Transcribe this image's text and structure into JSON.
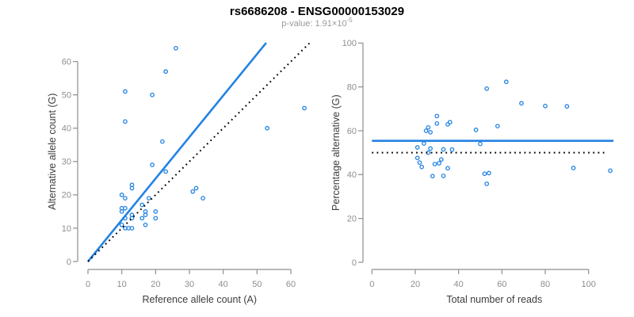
{
  "header": {
    "title": "rs6686208 - ENSG00000153029",
    "subtitle_base": "p-value: 1.91×10",
    "subtitle_exponent": "-5"
  },
  "colors": {
    "point_blue": "#2383e2",
    "fit_line_blue": "#2383e2",
    "reference_line_black": "#000000",
    "axis_gray": "#8e8e8e",
    "tick_label_gray": "#8e8e8e",
    "axis_label_dark": "#3d3d3d",
    "subtitle_gray": "#9a9a9a"
  },
  "chart_data": [
    {
      "id": "allele-count-scatter",
      "type": "scatter",
      "title": "",
      "xlabel": "Reference allele count (A)",
      "ylabel": "Alternative allele count (G)",
      "xlim": [
        0,
        66
      ],
      "ylim": [
        0,
        66
      ],
      "xticks": [
        0,
        10,
        20,
        30,
        40,
        50,
        60
      ],
      "yticks": [
        0,
        10,
        20,
        30,
        40,
        50,
        60
      ],
      "grid": false,
      "legend": "none",
      "points": [
        [
          26,
          64
        ],
        [
          23,
          57
        ],
        [
          11,
          51
        ],
        [
          19,
          50
        ],
        [
          11,
          42
        ],
        [
          22,
          36
        ],
        [
          19,
          29
        ],
        [
          23,
          27
        ],
        [
          13,
          23
        ],
        [
          13,
          22
        ],
        [
          31,
          21
        ],
        [
          32,
          22
        ],
        [
          34,
          19
        ],
        [
          10,
          20
        ],
        [
          11,
          19
        ],
        [
          18,
          19
        ],
        [
          16,
          17
        ],
        [
          10,
          16
        ],
        [
          10,
          15
        ],
        [
          11,
          16
        ],
        [
          11,
          13
        ],
        [
          13,
          14
        ],
        [
          13,
          13
        ],
        [
          17,
          15
        ],
        [
          17,
          14
        ],
        [
          16,
          13
        ],
        [
          20,
          15
        ],
        [
          20,
          13
        ],
        [
          17,
          11
        ],
        [
          10,
          11
        ],
        [
          11,
          10
        ],
        [
          12,
          10
        ],
        [
          13,
          10
        ],
        [
          53,
          40
        ],
        [
          64,
          46
        ]
      ],
      "lines": [
        {
          "name": "fit-line",
          "style": "solid",
          "x1": 0,
          "y1": 0,
          "x2": 52.7,
          "y2": 65.6
        },
        {
          "name": "identity-line",
          "style": "dotted",
          "x1": 0,
          "y1": 0,
          "x2": 65.5,
          "y2": 65.5
        }
      ]
    },
    {
      "id": "percentage-scatter",
      "type": "scatter",
      "title": "",
      "xlabel": "Total number of reads",
      "ylabel": "Percentage alternative (G)",
      "xlim": [
        0,
        113
      ],
      "ylim": [
        0,
        100
      ],
      "xticks": [
        0,
        20,
        40,
        60,
        80,
        100
      ],
      "yticks": [
        0,
        20,
        40,
        60,
        80,
        100
      ],
      "grid": false,
      "legend": "none",
      "points": [
        [
          90,
          71.1
        ],
        [
          80,
          71.3
        ],
        [
          62,
          82.3
        ],
        [
          69,
          72.5
        ],
        [
          53,
          79.2
        ],
        [
          58,
          62.1
        ],
        [
          48,
          60.4
        ],
        [
          50,
          54
        ],
        [
          36,
          63.9
        ],
        [
          35,
          62.9
        ],
        [
          52,
          40.4
        ],
        [
          54,
          40.7
        ],
        [
          53,
          35.8
        ],
        [
          30,
          66.7
        ],
        [
          30,
          63.3
        ],
        [
          37,
          51.4
        ],
        [
          33,
          51.5
        ],
        [
          26,
          61.5
        ],
        [
          25,
          60
        ],
        [
          27,
          59.3
        ],
        [
          24,
          54.2
        ],
        [
          27,
          51.9
        ],
        [
          26,
          50
        ],
        [
          32,
          46.9
        ],
        [
          31,
          45.2
        ],
        [
          29,
          44.8
        ],
        [
          35,
          42.9
        ],
        [
          33,
          39.4
        ],
        [
          28,
          39.3
        ],
        [
          21,
          52.4
        ],
        [
          21,
          47.6
        ],
        [
          22,
          45.5
        ],
        [
          23,
          43.5
        ],
        [
          93,
          43
        ],
        [
          110,
          41.8
        ]
      ],
      "lines": [
        {
          "name": "mean-line",
          "style": "solid",
          "x1": 0,
          "y1": 55.4,
          "x2": 111.5,
          "y2": 55.4
        },
        {
          "name": "null-line",
          "style": "dotted",
          "x1": 0,
          "y1": 50,
          "x2": 108.5,
          "y2": 50
        }
      ]
    }
  ]
}
